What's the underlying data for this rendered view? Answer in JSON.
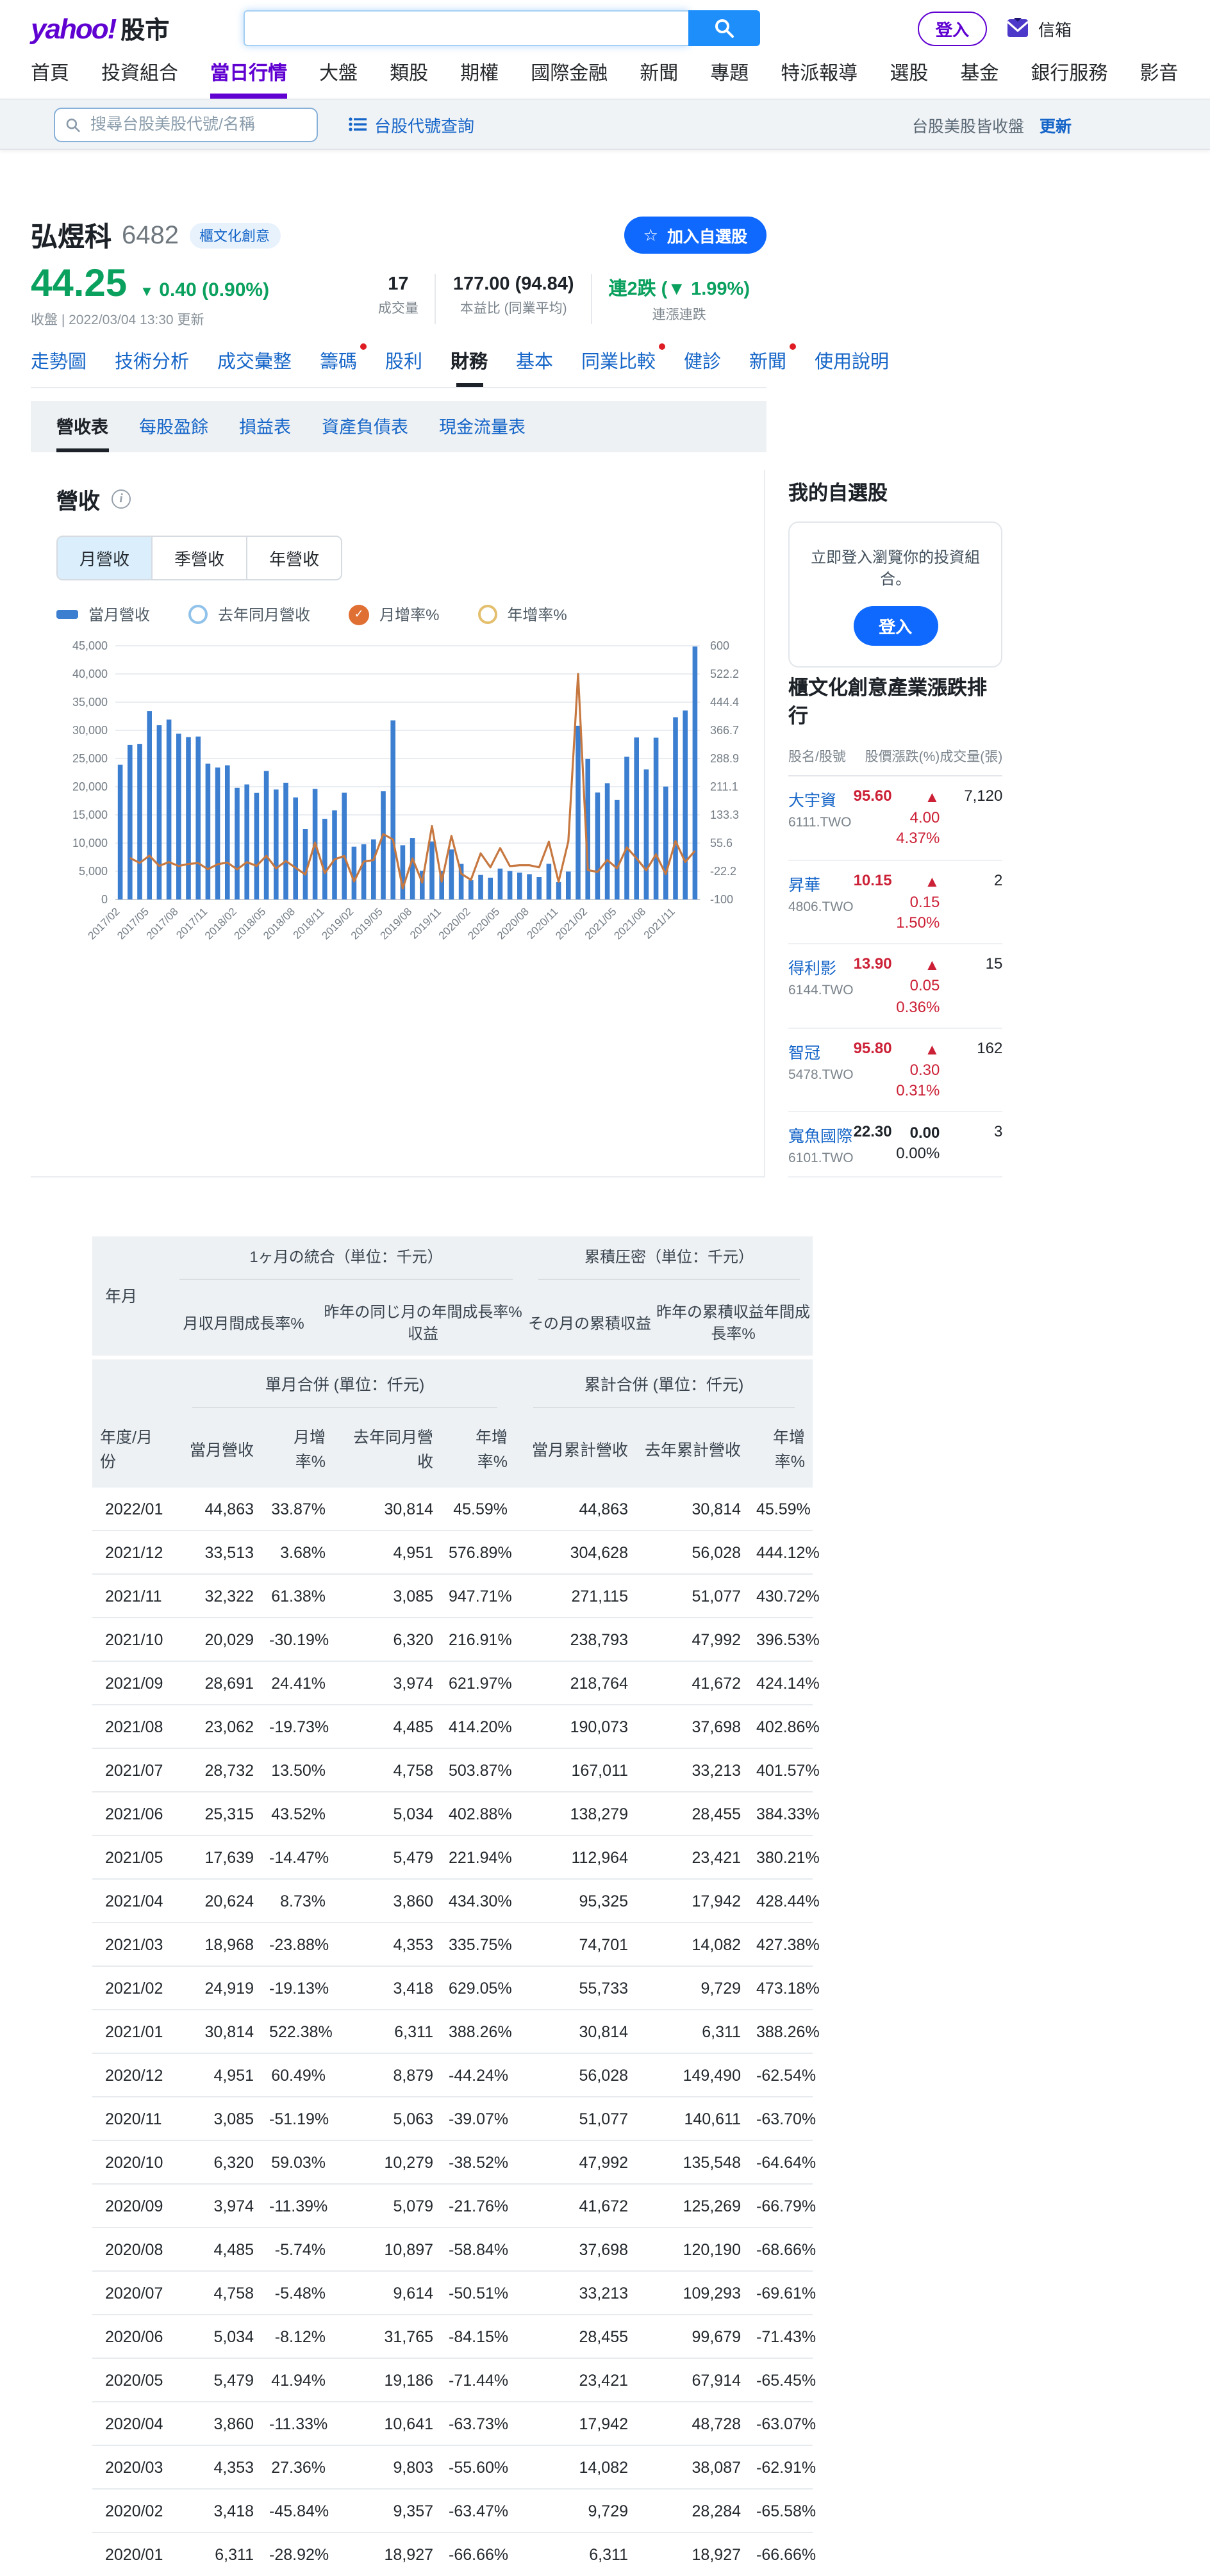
{
  "header": {
    "logo": {
      "brand": "yahoo!",
      "suffix": "股市"
    },
    "search": {
      "value": ""
    },
    "login_label": "登入",
    "mail_label": "信箱",
    "nav": [
      {
        "label": "首頁",
        "active": false
      },
      {
        "label": "投資組合",
        "active": false
      },
      {
        "label": "當日行情",
        "active": true
      },
      {
        "label": "大盤",
        "active": false
      },
      {
        "label": "類股",
        "active": false
      },
      {
        "label": "期權",
        "active": false
      },
      {
        "label": "國際金融",
        "active": false
      },
      {
        "label": "新聞",
        "active": false
      },
      {
        "label": "專題",
        "active": false
      },
      {
        "label": "特派報導",
        "active": false
      },
      {
        "label": "選股",
        "active": false
      },
      {
        "label": "基金",
        "active": false
      },
      {
        "label": "銀行服務",
        "active": false
      },
      {
        "label": "影音",
        "active": false
      }
    ]
  },
  "subheader": {
    "search_placeholder": "搜尋台股美股代號/名稱",
    "lookup_link": "台股代號查詢",
    "market_status": "台股美股皆收盤",
    "refresh_label": "更新"
  },
  "stock": {
    "name": "弘煜科",
    "code": "6482",
    "category_badge": "櫃文化創意",
    "price": "44.25",
    "change": "0.40",
    "change_pct": "(0.90%)",
    "direction": "down",
    "updated": "收盤 | 2022/03/04 13:30 更新",
    "add_watchlist": "加入自選股",
    "stats": [
      {
        "value": "17",
        "label": "成交量"
      },
      {
        "value": "177.00 (94.84)",
        "label": "本益比 (同業平均)"
      },
      {
        "value": "連2跌 (▼ 1.99%)",
        "label": "連漲連跌",
        "color": "green"
      }
    ]
  },
  "tabs": [
    {
      "label": "走勢圖",
      "active": false,
      "dot": false
    },
    {
      "label": "技術分析",
      "active": false,
      "dot": false
    },
    {
      "label": "成交彙整",
      "active": false,
      "dot": false
    },
    {
      "label": "籌碼",
      "active": false,
      "dot": true
    },
    {
      "label": "股利",
      "active": false,
      "dot": false
    },
    {
      "label": "財務",
      "active": true,
      "dot": false
    },
    {
      "label": "基本",
      "active": false,
      "dot": false
    },
    {
      "label": "同業比較",
      "active": false,
      "dot": true
    },
    {
      "label": "健診",
      "active": false,
      "dot": false
    },
    {
      "label": "新聞",
      "active": false,
      "dot": true
    },
    {
      "label": "使用說明",
      "active": false,
      "dot": false
    }
  ],
  "subtabs": [
    {
      "label": "營收表",
      "active": true
    },
    {
      "label": "每股盈餘",
      "active": false
    },
    {
      "label": "損益表",
      "active": false
    },
    {
      "label": "資產負債表",
      "active": false
    },
    {
      "label": "現金流量表",
      "active": false
    }
  ],
  "revenue_section": {
    "title": "營收",
    "period_toggle": [
      "月營收",
      "季營收",
      "年營收"
    ],
    "period_active": 0,
    "legend": [
      {
        "label": "當月營收",
        "type": "bar",
        "icon": "bar-swatch-icon"
      },
      {
        "label": "去年同月營收",
        "type": "ring-blue",
        "icon": "circle-outline-icon"
      },
      {
        "label": "月增率%",
        "type": "dot-orange",
        "icon": "checked-circle-icon"
      },
      {
        "label": "年增率%",
        "type": "ring-yellow",
        "icon": "circle-outline-icon"
      }
    ]
  },
  "chart_data": {
    "type": "bar+line",
    "title": "月營收",
    "x": [
      "2017/02",
      "2017/03",
      "2017/04",
      "2017/05",
      "2017/06",
      "2017/07",
      "2017/08",
      "2017/09",
      "2017/10",
      "2017/11",
      "2017/12",
      "2018/01",
      "2018/02",
      "2018/03",
      "2018/04",
      "2018/05",
      "2018/06",
      "2018/07",
      "2018/08",
      "2018/09",
      "2018/10",
      "2018/11",
      "2018/12",
      "2019/01",
      "2019/02",
      "2019/03",
      "2019/04",
      "2019/05",
      "2019/06",
      "2019/07",
      "2019/08",
      "2019/09",
      "2019/10",
      "2019/11",
      "2019/12",
      "2020/01",
      "2020/02",
      "2020/03",
      "2020/04",
      "2020/05",
      "2020/06",
      "2020/07",
      "2020/08",
      "2020/09",
      "2020/10",
      "2020/11",
      "2020/12",
      "2021/01",
      "2021/02",
      "2021/03",
      "2021/04",
      "2021/05",
      "2021/06",
      "2021/07",
      "2021/08",
      "2021/09",
      "2021/10",
      "2021/11",
      "2021/12",
      "2022/01"
    ],
    "series": [
      {
        "name": "當月營收",
        "type": "bar",
        "values": [
          23900,
          27400,
          27600,
          33400,
          30900,
          31900,
          29400,
          28800,
          28900,
          24100,
          23400,
          23800,
          19800,
          20400,
          18900,
          22800,
          19500,
          20700,
          18100,
          12500,
          19600,
          14300,
          15800,
          18927,
          9357,
          9803,
          10641,
          19186,
          31765,
          9614,
          10897,
          5079,
          10279,
          5063,
          8879,
          6311,
          3418,
          4353,
          3860,
          5479,
          5034,
          4758,
          4485,
          3974,
          6320,
          3085,
          4951,
          30814,
          24919,
          18968,
          20624,
          17639,
          25315,
          28732,
          23062,
          28691,
          20029,
          32322,
          33513,
          44863
        ]
      },
      {
        "name": "月增率%",
        "type": "line",
        "values": [
          null,
          14.6,
          0.7,
          21.0,
          -7.5,
          3.2,
          -7.8,
          -2.0,
          0.3,
          -16.6,
          -2.9,
          1.7,
          -16.8,
          3.0,
          -7.4,
          20.6,
          -14.5,
          6.2,
          -12.6,
          -30.9,
          56.8,
          -27.0,
          10.5,
          19.8,
          -50.6,
          4.8,
          8.5,
          80.3,
          65.6,
          -69.7,
          13.3,
          -53.4,
          102.4,
          -50.7,
          75.4,
          -28.92,
          -45.84,
          27.36,
          -11.33,
          41.94,
          -8.12,
          -5.48,
          -5.74,
          -11.39,
          59.03,
          -51.19,
          60.49,
          522.38,
          -19.13,
          -23.88,
          8.73,
          -14.47,
          43.52,
          13.5,
          -19.73,
          24.41,
          -30.19,
          61.38,
          3.68,
          33.87
        ]
      }
    ],
    "left_axis": {
      "min": 0,
      "max": 45000,
      "ticks": [
        0,
        5000,
        10000,
        15000,
        20000,
        25000,
        30000,
        35000,
        40000,
        45000
      ]
    },
    "right_axis": {
      "min": -100,
      "max": 600,
      "tick_labels": [
        "-100",
        "-22.2",
        "55.6",
        "133.3",
        "211.1",
        "288.9",
        "366.7",
        "444.4",
        "522.2",
        "600"
      ]
    },
    "x_tick_every": 3,
    "grid": true,
    "legend_position": "top",
    "colors": {
      "bar": "#3c7ed0",
      "line": "#c67840"
    }
  },
  "sidebar": {
    "watchlist_title": "我的自選股",
    "watchlist_prompt": "立即登入瀏覽你的投資組合。",
    "login_button": "登入",
    "ranking_title": "櫃文化創意產業漲跌排行",
    "ranking_headers": [
      "股名/股號",
      "股價",
      "漲跌(%)",
      "成交量(張)"
    ],
    "ranking_rows": [
      {
        "name": "大宇資",
        "code": "6111.TWO",
        "price": "95.60",
        "change": "▲ 4.00",
        "change_pct": "4.37%",
        "volume": "7,120",
        "trend": "up"
      },
      {
        "name": "昇華",
        "code": "4806.TWO",
        "price": "10.15",
        "change": "▲ 0.15",
        "change_pct": "1.50%",
        "volume": "2",
        "trend": "up"
      },
      {
        "name": "得利影",
        "code": "6144.TWO",
        "price": "13.90",
        "change": "▲ 0.05",
        "change_pct": "0.36%",
        "volume": "15",
        "trend": "up"
      },
      {
        "name": "智冠",
        "code": "5478.TWO",
        "price": "95.80",
        "change": "▲ 0.30",
        "change_pct": "0.31%",
        "volume": "162",
        "trend": "up"
      },
      {
        "name": "寬魚國際",
        "code": "6101.TWO",
        "price": "22.30",
        "change": "0.00",
        "change_pct": "0.00%",
        "volume": "3",
        "trend": "flat"
      }
    ]
  },
  "table": {
    "jp_band": {
      "col_month": "年月",
      "group1": "1ヶ月の統合（単位：千元）",
      "group1_cols": [
        "月収月間成長率%",
        "昨年の同じ月の年間成長率% 収益"
      ],
      "group2": "累積圧密（単位：千元）",
      "group2_cols": [
        "その月の累積収益",
        "昨年の累積収益年間成長率%"
      ]
    },
    "tw_band": {
      "group1": "單月合併 (單位：仟元)",
      "group2": "累計合併 (單位：仟元)",
      "columns": [
        "年度/月份",
        "當月營收",
        "月增率%",
        "去年同月營收",
        "年增率%",
        "當月累計營收",
        "去年累計營收",
        "年增率%"
      ]
    },
    "rows": [
      [
        "2022/01",
        "44,863",
        "33.87%",
        "30,814",
        "45.59%",
        "44,863",
        "30,814",
        "45.59%"
      ],
      [
        "2021/12",
        "33,513",
        "3.68%",
        "4,951",
        "576.89%",
        "304,628",
        "56,028",
        "444.12%"
      ],
      [
        "2021/11",
        "32,322",
        "61.38%",
        "3,085",
        "947.71%",
        "271,115",
        "51,077",
        "430.72%"
      ],
      [
        "2021/10",
        "20,029",
        "-30.19%",
        "6,320",
        "216.91%",
        "238,793",
        "47,992",
        "396.53%"
      ],
      [
        "2021/09",
        "28,691",
        "24.41%",
        "3,974",
        "621.97%",
        "218,764",
        "41,672",
        "424.14%"
      ],
      [
        "2021/08",
        "23,062",
        "-19.73%",
        "4,485",
        "414.20%",
        "190,073",
        "37,698",
        "402.86%"
      ],
      [
        "2021/07",
        "28,732",
        "13.50%",
        "4,758",
        "503.87%",
        "167,011",
        "33,213",
        "401.57%"
      ],
      [
        "2021/06",
        "25,315",
        "43.52%",
        "5,034",
        "402.88%",
        "138,279",
        "28,455",
        "384.33%"
      ],
      [
        "2021/05",
        "17,639",
        "-14.47%",
        "5,479",
        "221.94%",
        "112,964",
        "23,421",
        "380.21%"
      ],
      [
        "2021/04",
        "20,624",
        "8.73%",
        "3,860",
        "434.30%",
        "95,325",
        "17,942",
        "428.44%"
      ],
      [
        "2021/03",
        "18,968",
        "-23.88%",
        "4,353",
        "335.75%",
        "74,701",
        "14,082",
        "427.38%"
      ],
      [
        "2021/02",
        "24,919",
        "-19.13%",
        "3,418",
        "629.05%",
        "55,733",
        "9,729",
        "473.18%"
      ],
      [
        "2021/01",
        "30,814",
        "522.38%",
        "6,311",
        "388.26%",
        "30,814",
        "6,311",
        "388.26%"
      ],
      [
        "2020/12",
        "4,951",
        "60.49%",
        "8,879",
        "-44.24%",
        "56,028",
        "149,490",
        "-62.54%"
      ],
      [
        "2020/11",
        "3,085",
        "-51.19%",
        "5,063",
        "-39.07%",
        "51,077",
        "140,611",
        "-63.70%"
      ],
      [
        "2020/10",
        "6,320",
        "59.03%",
        "10,279",
        "-38.52%",
        "47,992",
        "135,548",
        "-64.64%"
      ],
      [
        "2020/09",
        "3,974",
        "-11.39%",
        "5,079",
        "-21.76%",
        "41,672",
        "125,269",
        "-66.79%"
      ],
      [
        "2020/08",
        "4,485",
        "-5.74%",
        "10,897",
        "-58.84%",
        "37,698",
        "120,190",
        "-68.66%"
      ],
      [
        "2020/07",
        "4,758",
        "-5.48%",
        "9,614",
        "-50.51%",
        "33,213",
        "109,293",
        "-69.61%"
      ],
      [
        "2020/06",
        "5,034",
        "-8.12%",
        "31,765",
        "-84.15%",
        "28,455",
        "99,679",
        "-71.43%"
      ],
      [
        "2020/05",
        "5,479",
        "41.94%",
        "19,186",
        "-71.44%",
        "23,421",
        "67,914",
        "-65.45%"
      ],
      [
        "2020/04",
        "3,860",
        "-11.33%",
        "10,641",
        "-63.73%",
        "17,942",
        "48,728",
        "-63.07%"
      ],
      [
        "2020/03",
        "4,353",
        "27.36%",
        "9,803",
        "-55.60%",
        "14,082",
        "38,087",
        "-62.91%"
      ],
      [
        "2020/02",
        "3,418",
        "-45.84%",
        "9,357",
        "-63.47%",
        "9,729",
        "28,284",
        "-65.58%"
      ],
      [
        "2020/01",
        "6,311",
        "-28.92%",
        "18,927",
        "-66.66%",
        "6,311",
        "18,927",
        "-66.66%"
      ]
    ]
  }
}
